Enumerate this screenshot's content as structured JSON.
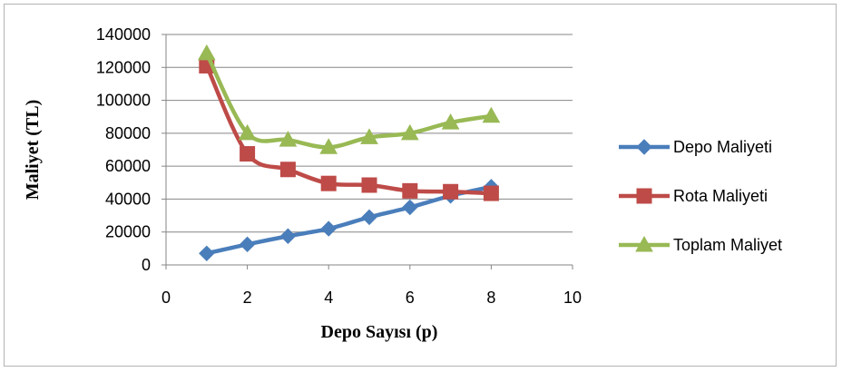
{
  "chart_data": {
    "type": "line",
    "xlabel": "Depo Sayısı (p)",
    "ylabel": "Maliyet (TL)",
    "xlim": [
      0,
      10
    ],
    "ylim": [
      0,
      140000
    ],
    "x_ticks": [
      0,
      2,
      4,
      6,
      8,
      10
    ],
    "y_ticks": [
      0,
      20000,
      40000,
      60000,
      80000,
      100000,
      120000,
      140000
    ],
    "grid": "horizontal",
    "legend_position": "right",
    "x": [
      1,
      2,
      3,
      4,
      5,
      6,
      7,
      8
    ],
    "series": [
      {
        "name": "Depo Maliyeti",
        "color": "#4a7ebb",
        "marker": "diamond",
        "values": [
          7000,
          12500,
          17500,
          22000,
          29000,
          35000,
          42000,
          47500
        ]
      },
      {
        "name": "Rota Maliyeti",
        "color": "#be4b48",
        "marker": "square",
        "values": [
          121000,
          67500,
          58000,
          49500,
          48500,
          45000,
          44500,
          43500
        ]
      },
      {
        "name": "Toplam Maliyet",
        "color": "#98b954",
        "marker": "triangle",
        "values": [
          128500,
          80000,
          76000,
          71500,
          77500,
          80000,
          86500,
          90500
        ]
      }
    ]
  }
}
